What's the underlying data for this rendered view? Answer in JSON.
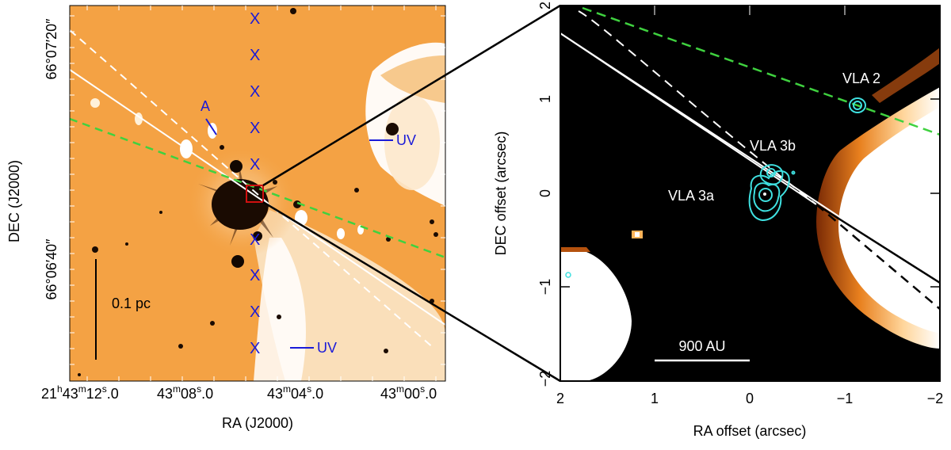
{
  "left_panel": {
    "x_axis_label": "RA (J2000)",
    "y_axis_label": "DEC (J2000)",
    "x_ticks": [
      {
        "h": "21",
        "hs": "h",
        "m": "43",
        "ms": "m",
        "s": "12",
        "ss": "s",
        "f": ".0"
      },
      {
        "m": "43",
        "ms": "m",
        "s": "08",
        "ss": "s",
        "f": ".0"
      },
      {
        "m": "43",
        "ms": "m",
        "s": "04",
        "ss": "s",
        "f": ".0"
      },
      {
        "m": "43",
        "ms": "m",
        "s": "00",
        "ss": "s",
        "f": ".0"
      }
    ],
    "y_ticks": [
      "66°07′20″",
      "66°06′40″"
    ],
    "marker_symbol": "X",
    "marker_count": 10,
    "label_A": "A",
    "label_UV": "UV",
    "scale_bar_label": "0.1 pc",
    "colors": {
      "background": "#f4a244",
      "lines": "#ffffff",
      "green_dashed": "#3fd13f",
      "blue": "#1a1ad8",
      "box": "#d01010"
    }
  },
  "right_panel": {
    "x_axis_label": "RA offset (arcsec)",
    "y_axis_label": "DEC offset (arcsec)",
    "x_ticks": [
      "2",
      "1",
      "0",
      "−1",
      "−2"
    ],
    "y_ticks": [
      "2",
      "1",
      "0",
      "−1",
      "−2"
    ],
    "sources": [
      "VLA 2",
      "VLA 3b",
      "VLA 3a"
    ],
    "scale_bar_label": "900 AU",
    "colors": {
      "background": "#000000",
      "contours": "#3fe0e0",
      "green_dashed": "#3fd13f"
    }
  }
}
